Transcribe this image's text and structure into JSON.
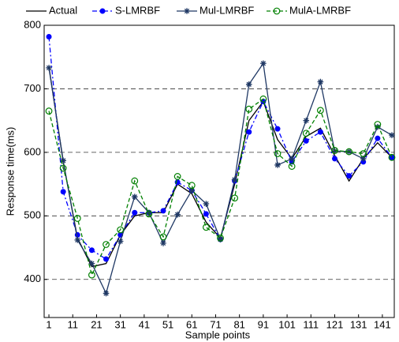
{
  "chart_data": {
    "type": "line",
    "xlabel": "Sample points",
    "ylabel": "Response time(ms)",
    "x": [
      1,
      7,
      13,
      19,
      25,
      31,
      37,
      43,
      49,
      55,
      61,
      67,
      73,
      79,
      85,
      91,
      97,
      103,
      109,
      115,
      121,
      127,
      133,
      139,
      145
    ],
    "series": [
      {
        "name": "Actual",
        "color": "#000000",
        "dash": "solid",
        "marker": "none",
        "values": [
          735,
          585,
          465,
          420,
          425,
          470,
          500,
          505,
          505,
          550,
          535,
          490,
          465,
          550,
          650,
          680,
          620,
          590,
          625,
          638,
          595,
          555,
          590,
          615,
          592
        ]
      },
      {
        "name": "S-LMRBF",
        "color": "#0000ff",
        "dash": "dashdot",
        "marker": "dot",
        "values": [
          782,
          538,
          470,
          446,
          432,
          470,
          505,
          505,
          508,
          553,
          540,
          503,
          463,
          555,
          632,
          680,
          637,
          585,
          618,
          632,
          590,
          563,
          585,
          622,
          592
        ]
      },
      {
        "name": "Mul-LMRBF",
        "color": "#1f3864",
        "dash": "solid",
        "marker": "star",
        "values": [
          733,
          587,
          462,
          425,
          378,
          460,
          530,
          505,
          457,
          502,
          540,
          519,
          463,
          557,
          707,
          740,
          580,
          590,
          650,
          711,
          602,
          601,
          590,
          640,
          627
        ]
      },
      {
        "name": "MulA-LMRBF",
        "color": "#008000",
        "dash": "dashed",
        "marker": "circle",
        "values": [
          665,
          575,
          496,
          407,
          455,
          478,
          555,
          503,
          467,
          562,
          548,
          482,
          465,
          528,
          668,
          684,
          598,
          578,
          630,
          666,
          603,
          601,
          598,
          644,
          592
        ]
      }
    ],
    "xlim": [
      -1,
      146
    ],
    "ylim": [
      340,
      800
    ],
    "xticks": [
      1,
      11,
      21,
      31,
      41,
      51,
      61,
      71,
      81,
      91,
      101,
      111,
      121,
      131,
      141
    ],
    "yticks": [
      400,
      500,
      600,
      700,
      800
    ],
    "grid": "y-dashed",
    "legend": "top"
  }
}
